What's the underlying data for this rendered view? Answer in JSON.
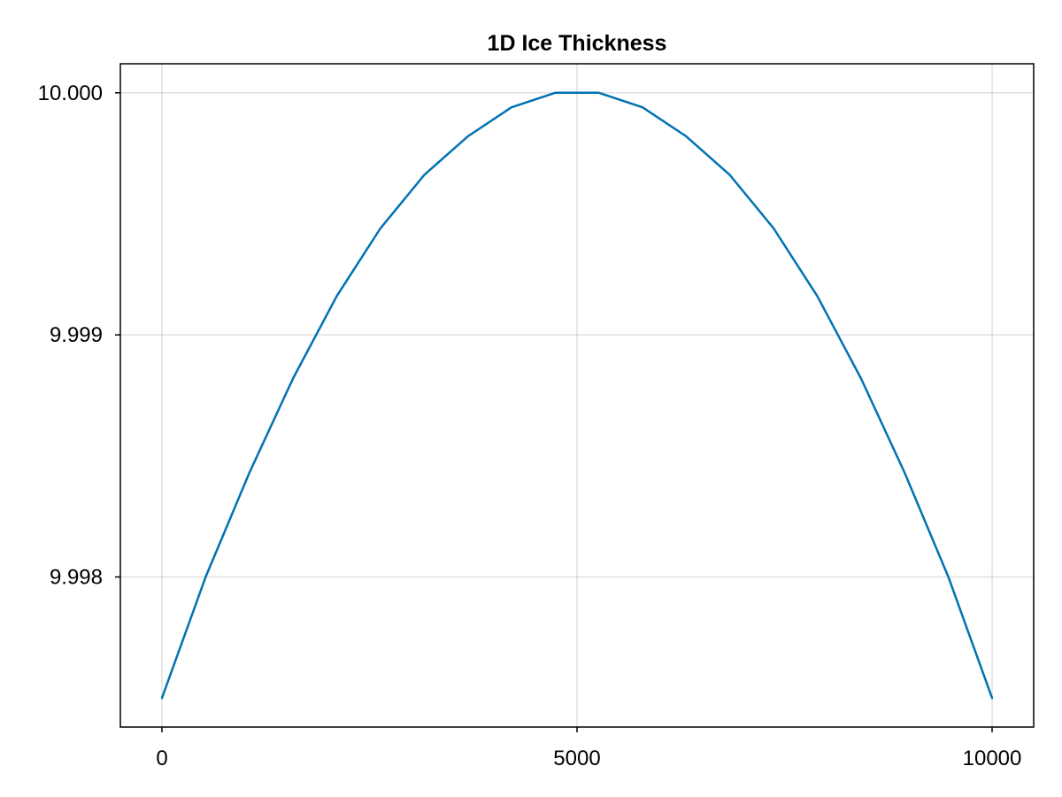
{
  "chart_data": {
    "type": "line",
    "title": "1D Ice Thickness",
    "xlabel": "",
    "ylabel": "",
    "xlim": [
      0,
      10000
    ],
    "ylim": [
      9.99738,
      10.00012
    ],
    "xticks": [
      0,
      5000,
      10000
    ],
    "xtick_labels": [
      "0",
      "5000",
      "10000"
    ],
    "yticks": [
      9.998,
      9.999,
      10.0
    ],
    "ytick_labels": [
      "9.998",
      "9.999",
      "10.000"
    ],
    "grid": true,
    "legend": "none",
    "colors": {
      "series": "#0072b2",
      "grid": "#e6e6e6",
      "frame": "#000000"
    },
    "series": [
      {
        "x": [
          0,
          526.3,
          1052.6,
          1578.9,
          2105.3,
          2631.6,
          3157.9,
          3684.2,
          4210.5,
          4736.8,
          5263.2,
          5789.5,
          6315.8,
          6842.1,
          7368.4,
          7894.7,
          8421.1,
          8947.4,
          9473.7,
          10000
        ],
        "values": [
          9.9975,
          9.998,
          9.99843,
          9.99882,
          9.99916,
          9.99944,
          9.99966,
          9.99982,
          9.99994,
          10.0,
          10.0,
          9.99994,
          9.99982,
          9.99966,
          9.99944,
          9.99916,
          9.99882,
          9.99843,
          9.998,
          9.9975
        ]
      }
    ]
  }
}
